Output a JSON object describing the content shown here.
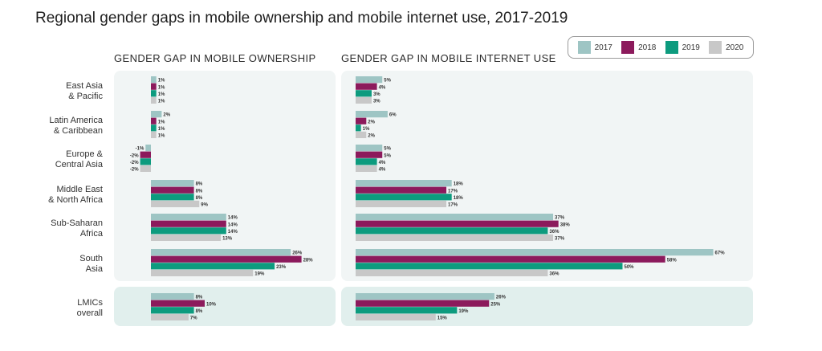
{
  "title": "Regional gender gaps in mobile ownership and mobile internet use, 2017-2019",
  "colors": {
    "2017": "#9ec5c4",
    "2018": "#8c1a5c",
    "2019": "#0d9b7e",
    "2020": "#c8c8c8",
    "panel_bg": "#f1f5f5",
    "overall_bg": "#e1efed"
  },
  "legend": [
    {
      "label": "2017",
      "color": "#9ec5c4"
    },
    {
      "label": "2018",
      "color": "#8c1a5c"
    },
    {
      "label": "2019",
      "color": "#0d9b7e"
    },
    {
      "label": "2020",
      "color": "#c8c8c8"
    }
  ],
  "chart_data": {
    "type": "bar",
    "orientation": "horizontal",
    "title": "Regional gender gaps in mobile ownership and mobile internet use, 2017-2019",
    "categories": [
      [
        "East Asia",
        "& Pacific"
      ],
      [
        "Latin America",
        "& Caribbean"
      ],
      [
        "Europe &",
        "Central Asia"
      ],
      [
        "Middle East",
        "& North Africa"
      ],
      [
        "Sub-Saharan",
        "Africa"
      ],
      [
        "South",
        "Asia"
      ],
      [
        "LMICs",
        "overall"
      ]
    ],
    "series_names": [
      "2017",
      "2018",
      "2019",
      "2020"
    ],
    "panels": [
      {
        "title": "GENDER GAP IN MOBILE OWNERSHIP",
        "xlim": [
          -3,
          31
        ],
        "values": [
          [
            1,
            1,
            1,
            1
          ],
          [
            2,
            1,
            1,
            1
          ],
          [
            -1,
            -2,
            -2,
            -2
          ],
          [
            8,
            8,
            8,
            9
          ],
          [
            14,
            14,
            14,
            13
          ],
          [
            26,
            28,
            23,
            19
          ],
          [
            8,
            10,
            8,
            7
          ]
        ],
        "labels": [
          [
            "1%",
            "1%",
            "1%",
            "1%"
          ],
          [
            "2%",
            "1%",
            "1%",
            "1%"
          ],
          [
            "-1%",
            "-2%",
            "-2%",
            "-2%"
          ],
          [
            "8%",
            "8%",
            "8%",
            "9%"
          ],
          [
            "14%",
            "14%",
            "14%",
            "13%"
          ],
          [
            "26%",
            "28%",
            "23%",
            "19%"
          ],
          [
            "8%",
            "10%",
            "8%",
            "7%"
          ]
        ]
      },
      {
        "title": "GENDER GAP IN MOBILE INTERNET USE",
        "xlim": [
          0,
          70
        ],
        "values": [
          [
            5,
            4,
            3,
            3
          ],
          [
            6,
            2,
            1,
            2
          ],
          [
            5,
            5,
            4,
            4
          ],
          [
            18,
            17,
            18,
            17
          ],
          [
            37,
            38,
            36,
            37
          ],
          [
            67,
            58,
            50,
            36
          ],
          [
            26,
            25,
            19,
            15
          ]
        ],
        "labels": [
          [
            "5%",
            "4%",
            "3%",
            "3%"
          ],
          [
            "6%",
            "2%",
            "1%",
            "2%"
          ],
          [
            "5%",
            "5%",
            "4%",
            "4%"
          ],
          [
            "18%",
            "17%",
            "18%",
            "17%"
          ],
          [
            "37%",
            "38%",
            "36%",
            "37%"
          ],
          [
            "67%",
            "58%",
            "50%",
            "36%"
          ],
          [
            "26%",
            "25%",
            "19%",
            "15%"
          ]
        ]
      }
    ]
  }
}
